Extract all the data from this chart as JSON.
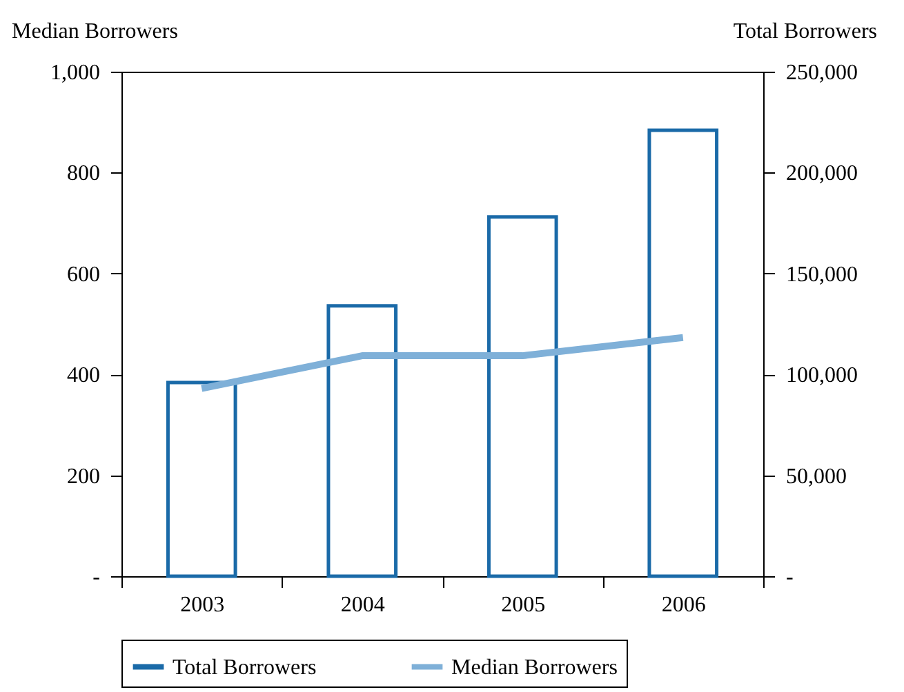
{
  "chart_data": {
    "type": "bar",
    "categories": [
      "2003",
      "2004",
      "2005",
      "2006"
    ],
    "series": [
      {
        "name": "Total Borrowers",
        "axis": "y2",
        "color": "#1a6aa8",
        "values": [
          96000,
          134000,
          178000,
          221000
        ]
      },
      {
        "name": "Median Borrowers",
        "type": "line",
        "color": "#7fb0d8",
        "values": [
          372,
          437,
          437,
          473
        ]
      }
    ],
    "ylabel": "Median Borrowers",
    "y2label": "Total Borrowers",
    "ylim": [
      0,
      1000
    ],
    "yticks": [
      {
        "value": 0,
        "label": "-"
      },
      200,
      400,
      600,
      800,
      {
        "value": 1000,
        "label": "1,000"
      }
    ],
    "y2lim": [
      0,
      250000
    ],
    "y2ticks": [
      {
        "value": 0,
        "label": "-"
      },
      {
        "value": 50000,
        "label": "50,000"
      },
      {
        "value": 100000,
        "label": "100,000"
      },
      {
        "value": 150000,
        "label": "150,000"
      },
      {
        "value": 200000,
        "label": "200,000"
      },
      {
        "value": 250000,
        "label": "250,000"
      }
    ],
    "legend": "bottom",
    "grid": false
  }
}
